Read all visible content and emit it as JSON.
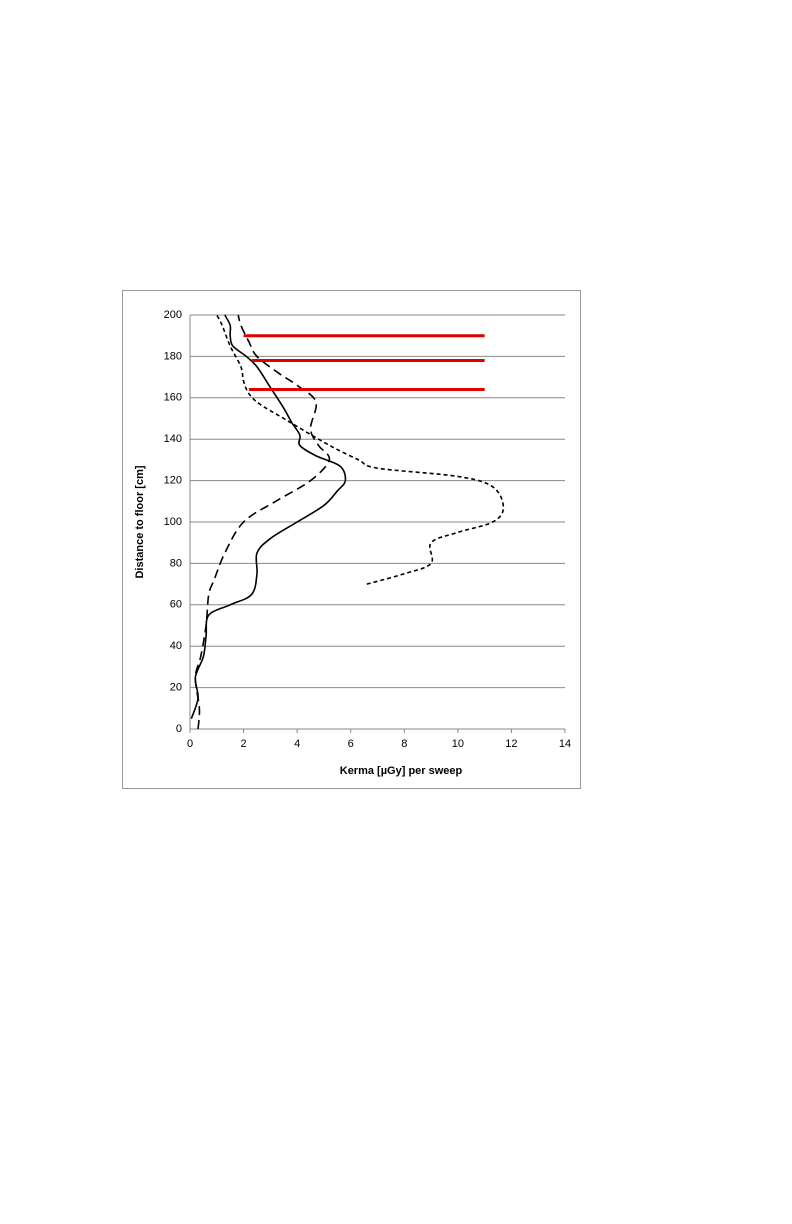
{
  "chart_data": {
    "type": "line",
    "xlabel": "Kerma [µGy] per sweep",
    "ylabel": "Distance to floor [cm]",
    "xlim": [
      0,
      14
    ],
    "xticks": [
      0,
      2,
      4,
      6,
      8,
      10,
      12,
      14
    ],
    "ylim": [
      0,
      200
    ],
    "yticks": [
      0,
      20,
      40,
      60,
      80,
      100,
      120,
      140,
      160,
      180,
      200
    ],
    "grid": true,
    "series": [
      {
        "color": "#000000",
        "dash": "solid",
        "x": [
          0.05,
          0.3,
          0.2,
          0.5,
          0.6,
          0.7,
          1.5,
          2.3,
          2.5,
          2.5,
          3.0,
          4.0,
          5.0,
          5.5,
          5.8,
          5.6,
          4.7,
          4.1,
          4.1,
          3.8,
          3.5,
          3.0,
          2.5,
          2.1,
          1.6,
          1.5,
          1.5,
          1.3
        ],
        "y": [
          5,
          15,
          25,
          35,
          45,
          55,
          60,
          65,
          75,
          85,
          92,
          100,
          108,
          115,
          120,
          127,
          132,
          137,
          142,
          148,
          155,
          165,
          175,
          180,
          185,
          190,
          195,
          200
        ]
      },
      {
        "color": "#000000",
        "dash": "long",
        "x": [
          0.3,
          0.35,
          0.2,
          0.4,
          0.6,
          0.7,
          0.9,
          1.3,
          2.0,
          3.2,
          4.5,
          5.2,
          4.8,
          4.5,
          4.7,
          4.0,
          3.3,
          2.5,
          2.2,
          1.9,
          1.8
        ],
        "y": [
          0,
          10,
          25,
          35,
          50,
          65,
          72,
          85,
          100,
          110,
          120,
          130,
          137,
          145,
          158,
          166,
          172,
          180,
          187,
          195,
          200
        ]
      },
      {
        "color": "#000000",
        "dash": "short",
        "x": [
          6.6,
          8.0,
          9.0,
          9.0,
          10.0,
          11.3,
          11.7,
          11.3,
          10.0,
          7.0,
          6.3,
          5.5,
          4.8,
          3.5,
          2.6,
          2.2,
          2.0,
          1.9,
          1.5,
          1.2,
          1.0
        ],
        "y": [
          70,
          75,
          80,
          90,
          95,
          100,
          107,
          117,
          122,
          126,
          130,
          135,
          140,
          150,
          157,
          162,
          168,
          175,
          185,
          195,
          200
        ]
      }
    ],
    "reference_lines": [
      {
        "y": 190,
        "x": [
          2,
          11
        ],
        "color": "#e00000"
      },
      {
        "y": 178,
        "x": [
          2.3,
          11
        ],
        "color": "#e00000"
      },
      {
        "y": 164,
        "x": [
          2.2,
          11
        ],
        "color": "#e00000"
      }
    ]
  }
}
